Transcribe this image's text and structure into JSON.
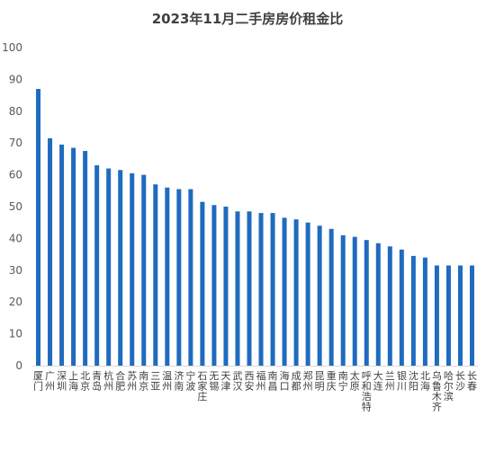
{
  "chart_data": {
    "type": "bar",
    "title": "2023年11月二手房房价租金比",
    "xlabel": "",
    "ylabel": "",
    "ylim": [
      0,
      100
    ],
    "yticks": [
      0,
      10,
      20,
      30,
      40,
      50,
      60,
      70,
      80,
      90,
      100
    ],
    "grid": false,
    "legend": "none",
    "bar_color": "#1f6bbf",
    "categories": [
      "厦门",
      "广州",
      "深圳",
      "上海",
      "北京",
      "青岛",
      "杭州",
      "合肥",
      "苏州",
      "南京",
      "三亚",
      "温州",
      "济南",
      "宁波",
      "石家庄",
      "无锡",
      "天津",
      "武汉",
      "西安",
      "福州",
      "南昌",
      "海口",
      "成都",
      "郑州",
      "昆明",
      "重庆",
      "南宁",
      "太原",
      "呼和浩特",
      "大连",
      "兰州",
      "银川",
      "沈阳",
      "北海",
      "乌鲁木齐",
      "哈尔滨",
      "长沙",
      "长春"
    ],
    "values": [
      87,
      71.5,
      69.5,
      68.5,
      67.5,
      63,
      62,
      61.5,
      60.5,
      60,
      57,
      56,
      55.5,
      55.5,
      51.5,
      50.5,
      50,
      48.5,
      48.5,
      48,
      48,
      46.5,
      46,
      45,
      44,
      43,
      41,
      40.5,
      39.5,
      38.5,
      37.5,
      36.5,
      34.5,
      34,
      31.5,
      31.5,
      31.5,
      31.5
    ]
  }
}
